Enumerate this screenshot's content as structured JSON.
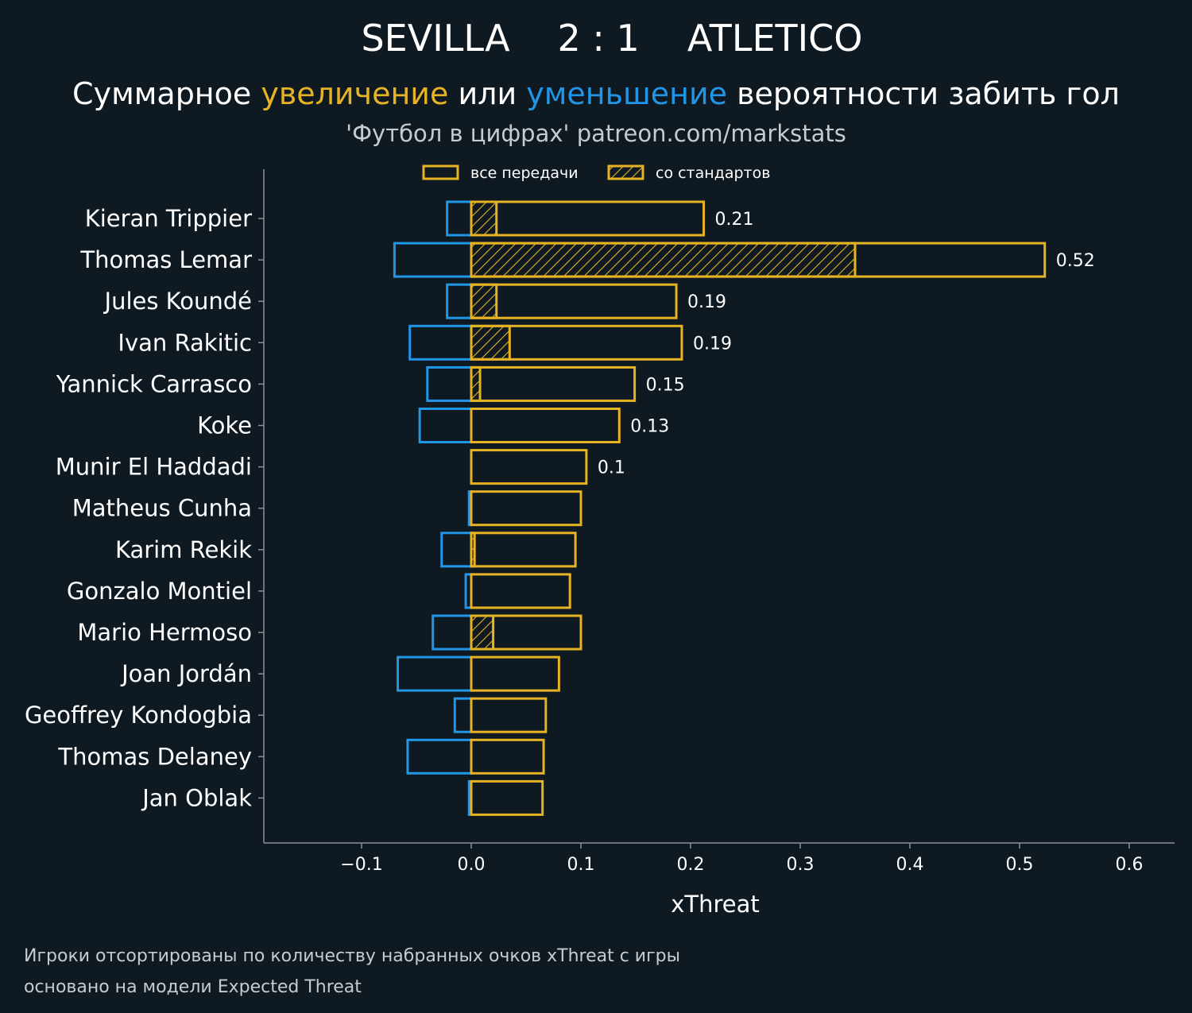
{
  "header": {
    "home": "SEVILLA",
    "score": "2 : 1",
    "away": "ATLETICO"
  },
  "subtitle": {
    "part1": "Суммарное ",
    "increase": "увеличение",
    "part2": " или ",
    "decrease": "уменьшение",
    "part3": " вероятности забить гол"
  },
  "credit": "'Футбол в цифрах' patreon.com/markstats",
  "legend": {
    "all_passes": "все передачи",
    "set_pieces": "со стандартов"
  },
  "footnote": {
    "line1": "Игроки отсортированы по количеству набранных очков xThreat с игры",
    "line2": "основано на модели Expected Threat"
  },
  "colors": {
    "background": "#0f1922",
    "positive": "#e5b323",
    "negative": "#2196e6",
    "axis": "#8a9299"
  },
  "chart_data": {
    "type": "bar",
    "orientation": "horizontal",
    "xlabel": "xThreat",
    "xlim": [
      -0.188,
      0.64
    ],
    "xticks": [
      -0.1,
      0.0,
      0.1,
      0.2,
      0.3,
      0.4,
      0.5,
      0.6
    ],
    "xtick_labels": [
      "−0.1",
      "0.0",
      "0.1",
      "0.2",
      "0.3",
      "0.4",
      "0.5",
      "0.6"
    ],
    "categories": [
      "Kieran Trippier",
      "Thomas Lemar",
      "Jules Koundé",
      "Ivan Rakitic",
      "Yannick Carrasco",
      "Koke",
      "Munir El Haddadi",
      "Matheus Cunha",
      "Karim Rekik",
      "Gonzalo Montiel",
      "Mario Hermoso",
      "Joan Jordán",
      "Geoffrey Kondogbia",
      "Thomas Delaney",
      "Jan Oblak"
    ],
    "series": [
      {
        "name": "все передачи (увеличение)",
        "values": [
          0.212,
          0.523,
          0.187,
          0.192,
          0.149,
          0.135,
          0.105,
          0.1,
          0.095,
          0.09,
          0.1,
          0.08,
          0.068,
          0.066,
          0.065
        ]
      },
      {
        "name": "со стандартов",
        "values": [
          0.023,
          0.35,
          0.023,
          0.035,
          0.008,
          0.0,
          0.0,
          0.0,
          0.003,
          0.0,
          0.02,
          0.0,
          0.0,
          0.0,
          0.0
        ]
      },
      {
        "name": "уменьшение",
        "values": [
          -0.022,
          -0.07,
          -0.022,
          -0.056,
          -0.04,
          -0.047,
          0.0,
          -0.002,
          -0.027,
          -0.005,
          -0.035,
          -0.067,
          -0.015,
          -0.058,
          -0.002
        ]
      }
    ],
    "value_labels": [
      "0.21",
      "0.52",
      "0.19",
      "0.19",
      "0.15",
      "0.13",
      "0.1",
      "",
      "",
      "",
      "",
      "",
      "",
      "",
      ""
    ],
    "legend_position": "top-center"
  }
}
